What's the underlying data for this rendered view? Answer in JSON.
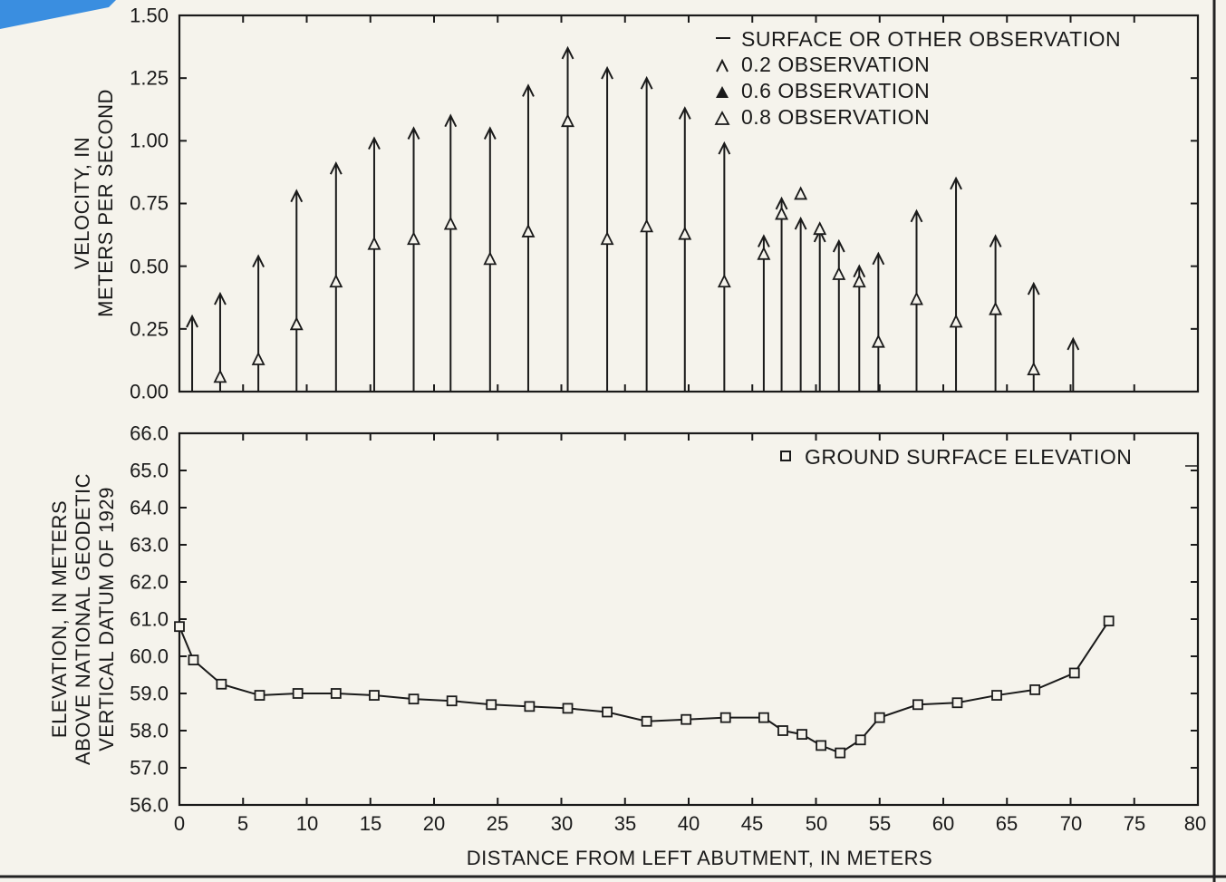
{
  "chart_data": [
    {
      "type": "scatter",
      "variant": "velocity-vectors",
      "ylabel_line1": "VELOCITY, IN",
      "ylabel_line2": "METERS PER SECOND",
      "xlim": [
        0,
        80
      ],
      "ylim": [
        0,
        1.5
      ],
      "yticks": [
        "0.00",
        "0.25",
        "0.50",
        "0.75",
        "1.00",
        "1.25",
        "1.50"
      ],
      "legend": {
        "position": "top-right",
        "entries": [
          {
            "symbol": "dash",
            "label": "SURFACE OR OTHER OBSERVATION"
          },
          {
            "symbol": "open-caret",
            "label": "0.2 OBSERVATION"
          },
          {
            "symbol": "filled-triangle",
            "label": "0.6 OBSERVATION"
          },
          {
            "symbol": "open-triangle",
            "label": "0.8 OBSERVATION"
          }
        ]
      },
      "series": [
        {
          "label": "0.2 OBSERVATION",
          "x": [
            1.0,
            3.2,
            6.2,
            9.2,
            12.3,
            15.3,
            18.4,
            21.3,
            24.4,
            27.4,
            30.5,
            33.6,
            36.7,
            39.7,
            42.8,
            45.9,
            47.3,
            48.8,
            50.3,
            51.8,
            53.4,
            54.9,
            57.9,
            61.0,
            64.1,
            67.1,
            70.2
          ],
          "values": [
            0.3,
            0.39,
            0.54,
            0.8,
            0.91,
            1.01,
            1.05,
            1.1,
            1.05,
            1.22,
            1.37,
            1.29,
            1.25,
            1.13,
            0.99,
            0.62,
            0.77,
            0.69,
            0.64,
            0.6,
            0.5,
            0.55,
            0.72,
            0.85,
            0.62,
            0.43,
            0.21
          ]
        },
        {
          "label": "0.8 OBSERVATION",
          "x": [
            3.2,
            6.2,
            9.2,
            12.3,
            15.3,
            18.4,
            21.3,
            24.4,
            27.4,
            30.5,
            33.6,
            36.7,
            39.7,
            42.8,
            45.9,
            47.3,
            48.8,
            50.3,
            51.8,
            53.4,
            54.9,
            57.9,
            61.0,
            64.1,
            67.1
          ],
          "values": [
            0.06,
            0.13,
            0.27,
            0.44,
            0.59,
            0.61,
            0.67,
            0.53,
            0.64,
            1.08,
            0.61,
            0.66,
            0.63,
            0.44,
            0.55,
            0.71,
            0.79,
            0.65,
            0.47,
            0.44,
            0.2,
            0.37,
            0.28,
            0.33,
            0.09
          ]
        }
      ]
    },
    {
      "type": "line",
      "ylabel_line1": "ELEVATION, IN METERS",
      "ylabel_line2": "ABOVE NATIONAL GEODETIC",
      "ylabel_line3": "VERTICAL DATUM OF 1929",
      "xlabel": "DISTANCE FROM LEFT ABUTMENT, IN METERS",
      "xlim": [
        0,
        80
      ],
      "ylim": [
        56,
        66
      ],
      "xticks": [
        "0",
        "5",
        "10",
        "15",
        "20",
        "25",
        "30",
        "35",
        "40",
        "45",
        "50",
        "55",
        "60",
        "65",
        "70",
        "75",
        "80"
      ],
      "yticks": [
        "56.0",
        "57.0",
        "58.0",
        "59.0",
        "60.0",
        "61.0",
        "62.0",
        "63.0",
        "64.0",
        "65.0",
        "66.0"
      ],
      "legend": {
        "position": "top-right",
        "label": "GROUND SURFACE ELEVATION"
      },
      "marker": "open-square",
      "series": [
        {
          "label": "GROUND SURFACE ELEVATION",
          "x": [
            0,
            1.1,
            3.3,
            6.3,
            9.3,
            12.3,
            15.3,
            18.4,
            21.4,
            24.5,
            27.5,
            30.5,
            33.6,
            36.7,
            39.8,
            42.9,
            45.9,
            47.4,
            48.9,
            50.4,
            51.9,
            53.5,
            55.0,
            58.0,
            61.1,
            64.2,
            67.2,
            70.3,
            73.0
          ],
          "values": [
            60.8,
            59.9,
            59.25,
            58.95,
            59.0,
            59.0,
            58.95,
            58.85,
            58.8,
            58.7,
            58.65,
            58.6,
            58.5,
            58.25,
            58.3,
            58.35,
            58.35,
            58.0,
            57.9,
            57.6,
            57.4,
            57.75,
            58.35,
            58.7,
            58.75,
            58.95,
            59.1,
            59.55,
            60.95
          ]
        }
      ]
    }
  ]
}
